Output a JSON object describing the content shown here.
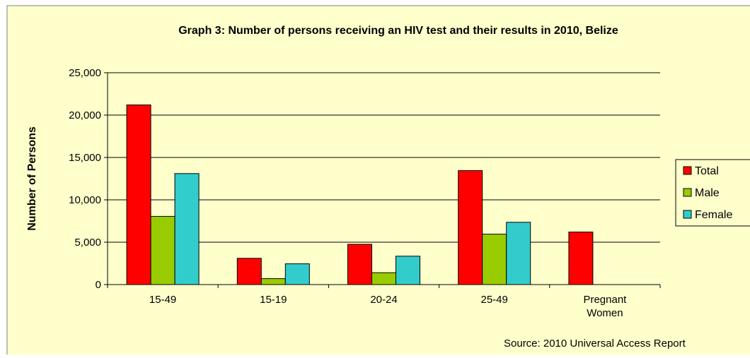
{
  "chart_data": {
    "type": "bar",
    "title": "Graph 3: Number of persons receiving an HIV test and their results in 2010, Belize",
    "ylabel": "Number of Persons",
    "xlabel": "",
    "ylim": [
      0,
      25000
    ],
    "yticks": [
      0,
      5000,
      10000,
      15000,
      20000,
      25000
    ],
    "ytick_labels": [
      "0",
      "5,000",
      "10,000",
      "15,000",
      "20,000",
      "25,000"
    ],
    "categories": [
      "15-49",
      "15-19",
      "20-24",
      "25-49",
      "Pregnant Women"
    ],
    "series": [
      {
        "name": "Total",
        "color": "#ff0000",
        "values": [
          21200,
          3100,
          4750,
          13450,
          6200
        ]
      },
      {
        "name": "Male",
        "color": "#99cc00",
        "values": [
          8050,
          700,
          1400,
          5950,
          0
        ]
      },
      {
        "name": "Female",
        "color": "#33cccc",
        "values": [
          13100,
          2450,
          3350,
          7350,
          0
        ]
      }
    ],
    "grid": true,
    "legend_position": "right",
    "source": "Source: 2010 Universal Access Report",
    "colors": {
      "background": "#ffffcc",
      "grid": "#000000",
      "border": "#808080"
    }
  }
}
